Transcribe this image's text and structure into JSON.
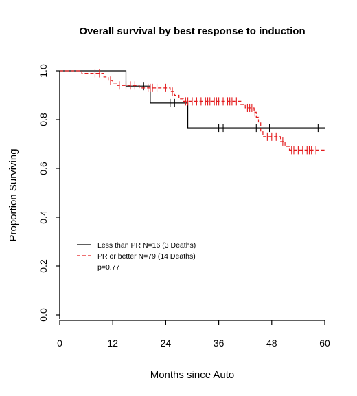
{
  "chart_data": {
    "type": "line",
    "title": "Overall survival by best response to induction",
    "xlabel": "Months since Auto",
    "ylabel": "Proportion Surviving",
    "xlim": [
      0,
      60
    ],
    "ylim": [
      0,
      1
    ],
    "xticks": [
      "0",
      "12",
      "24",
      "36",
      "48",
      "60"
    ],
    "yticks": [
      "0.0",
      "0.2",
      "0.4",
      "0.6",
      "0.8",
      "1.0"
    ],
    "grid": false,
    "legend_position": "bottom-left",
    "legend": [
      "Less than PR N=16 (3 Deaths)",
      "PR or better N=79 (14 Deaths)"
    ],
    "annotation": "p=0.77",
    "series": [
      {
        "name": "Less than PR N=16 (3 Deaths)",
        "color": "#000000",
        "linestyle": "solid",
        "steps": [
          [
            0,
            1.0
          ],
          [
            15,
            0.9375
          ],
          [
            20.5,
            0.868
          ],
          [
            29,
            0.766
          ],
          [
            60,
            0.766
          ]
        ],
        "censored": [
          [
            19,
            0.9375
          ],
          [
            25,
            0.868
          ],
          [
            26,
            0.868
          ],
          [
            36,
            0.766
          ],
          [
            37,
            0.766
          ],
          [
            44.5,
            0.766
          ],
          [
            47.5,
            0.766
          ],
          [
            58.5,
            0.766
          ]
        ]
      },
      {
        "name": "PR or better N=79 (14 Deaths)",
        "color": "#e31a1c",
        "linestyle": "dashed",
        "steps": [
          [
            0,
            1.0
          ],
          [
            5,
            0.99
          ],
          [
            10,
            0.975
          ],
          [
            11,
            0.96
          ],
          [
            12,
            0.95
          ],
          [
            13,
            0.94
          ],
          [
            18,
            0.93
          ],
          [
            25,
            0.915
          ],
          [
            26,
            0.9
          ],
          [
            27,
            0.885
          ],
          [
            28,
            0.875
          ],
          [
            41,
            0.862
          ],
          [
            42,
            0.848
          ],
          [
            44,
            0.83
          ],
          [
            44.5,
            0.81
          ],
          [
            45,
            0.79
          ],
          [
            45.5,
            0.75
          ],
          [
            46,
            0.73
          ],
          [
            50,
            0.71
          ],
          [
            51,
            0.69
          ],
          [
            52,
            0.675
          ],
          [
            60,
            0.675
          ]
        ],
        "censored": [
          [
            8,
            0.99
          ],
          [
            9,
            0.99
          ],
          [
            11.5,
            0.96
          ],
          [
            13.5,
            0.94
          ],
          [
            15,
            0.94
          ],
          [
            16,
            0.94
          ],
          [
            17,
            0.94
          ],
          [
            20,
            0.93
          ],
          [
            20.5,
            0.93
          ],
          [
            21,
            0.93
          ],
          [
            22,
            0.93
          ],
          [
            24,
            0.93
          ],
          [
            25.5,
            0.915
          ],
          [
            28.5,
            0.875
          ],
          [
            29,
            0.875
          ],
          [
            30,
            0.875
          ],
          [
            31,
            0.875
          ],
          [
            32,
            0.875
          ],
          [
            33,
            0.875
          ],
          [
            33.5,
            0.875
          ],
          [
            34,
            0.875
          ],
          [
            35,
            0.875
          ],
          [
            35.5,
            0.875
          ],
          [
            36,
            0.875
          ],
          [
            37,
            0.875
          ],
          [
            38,
            0.875
          ],
          [
            38.5,
            0.875
          ],
          [
            39,
            0.875
          ],
          [
            40,
            0.875
          ],
          [
            42.5,
            0.848
          ],
          [
            43,
            0.848
          ],
          [
            43.5,
            0.848
          ],
          [
            44.2,
            0.83
          ],
          [
            47,
            0.73
          ],
          [
            48,
            0.73
          ],
          [
            49,
            0.73
          ],
          [
            50.5,
            0.71
          ],
          [
            52.5,
            0.675
          ],
          [
            53,
            0.675
          ],
          [
            54,
            0.675
          ],
          [
            55,
            0.675
          ],
          [
            56,
            0.675
          ],
          [
            56.5,
            0.675
          ],
          [
            57,
            0.675
          ],
          [
            58,
            0.675
          ]
        ]
      }
    ]
  }
}
